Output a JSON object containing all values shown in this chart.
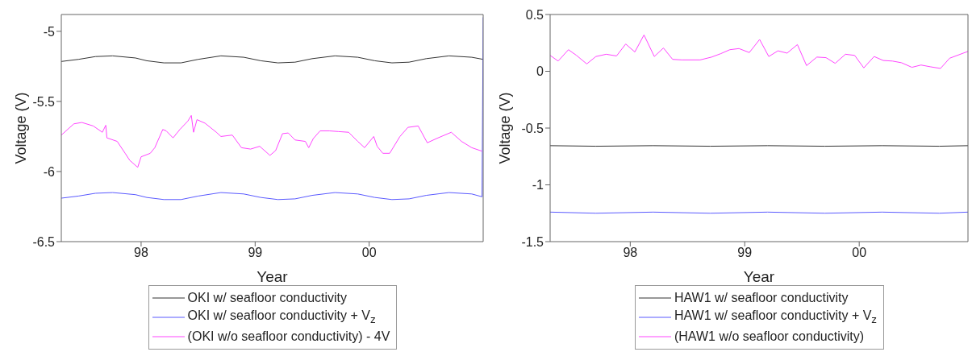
{
  "chart_data": [
    {
      "type": "line",
      "xlabel": "Year",
      "ylabel": "Voltage (V)",
      "xlim": [
        1997.3,
        2001.0
      ],
      "ylim": [
        -6.5,
        -4.88
      ],
      "xticks": [
        {
          "value": 1998,
          "label": "98"
        },
        {
          "value": 1999,
          "label": "99"
        },
        {
          "value": 2000,
          "label": "00"
        }
      ],
      "yticks": [
        -6.5,
        -6,
        -5.5,
        -5
      ],
      "legend": "bottom",
      "marker": "none",
      "series": [
        {
          "name": "OKI  w/ seafloor conductivity",
          "color": "#333333",
          "x": [
            1997.3,
            1997.45,
            1997.6,
            1997.75,
            1997.95,
            1998.05,
            1998.2,
            1998.35,
            1998.5,
            1998.7,
            1998.9,
            1999.05,
            1999.2,
            1999.35,
            1999.5,
            1999.7,
            1999.9,
            2000.05,
            2000.2,
            2000.35,
            2000.5,
            2000.7,
            2000.9,
            2001.0
          ],
          "values": [
            -5.215,
            -5.2,
            -5.18,
            -5.175,
            -5.19,
            -5.21,
            -5.225,
            -5.225,
            -5.2,
            -5.175,
            -5.185,
            -5.21,
            -5.225,
            -5.22,
            -5.195,
            -5.175,
            -5.185,
            -5.21,
            -5.225,
            -5.22,
            -5.195,
            -5.175,
            -5.185,
            -5.2
          ]
        },
        {
          "name": "OKI  w/ seafloor conductivity + V$_{z}$",
          "color": "#5a5aff",
          "x": [
            1997.3,
            1997.45,
            1997.6,
            1997.75,
            1997.95,
            1998.05,
            1998.2,
            1998.35,
            1998.5,
            1998.7,
            1998.9,
            1999.05,
            1999.2,
            1999.35,
            1999.5,
            1999.7,
            1999.9,
            2000.05,
            2000.2,
            2000.35,
            2000.5,
            2000.7,
            2000.9,
            2000.99,
            2001.0
          ],
          "values": [
            -6.19,
            -6.175,
            -6.155,
            -6.15,
            -6.165,
            -6.185,
            -6.2,
            -6.2,
            -6.175,
            -6.15,
            -6.16,
            -6.185,
            -6.2,
            -6.195,
            -6.17,
            -6.15,
            -6.16,
            -6.185,
            -6.2,
            -6.195,
            -6.17,
            -6.15,
            -6.16,
            -6.18,
            -4.9
          ]
        },
        {
          "name": "(OKI w/o seafloor conductivity) - 4V",
          "color": "#ff44ff",
          "x": [
            1997.3,
            1997.41,
            1997.48,
            1997.58,
            1997.66,
            1997.69,
            1997.7,
            1997.79,
            1997.86,
            1997.9,
            1997.97,
            1998.0,
            1998.08,
            1998.12,
            1998.19,
            1998.22,
            1998.28,
            1998.34,
            1998.41,
            1998.44,
            1998.46,
            1998.49,
            1998.56,
            1998.66,
            1998.7,
            1998.8,
            1998.88,
            1998.96,
            1999.04,
            1999.13,
            1999.18,
            1999.24,
            1999.29,
            1999.35,
            1999.44,
            1999.47,
            1999.51,
            1999.57,
            1999.65,
            1999.73,
            1999.82,
            1999.9,
            1999.96,
            2000.04,
            2000.07,
            2000.12,
            2000.18,
            2000.27,
            2000.34,
            2000.43,
            2000.46,
            2000.51,
            2000.59,
            2000.72,
            2000.81,
            2000.9,
            2000.99
          ],
          "values": [
            -5.74,
            -5.66,
            -5.65,
            -5.675,
            -5.72,
            -5.67,
            -5.76,
            -5.785,
            -5.87,
            -5.92,
            -5.97,
            -5.895,
            -5.87,
            -5.83,
            -5.7,
            -5.71,
            -5.76,
            -5.7,
            -5.64,
            -5.6,
            -5.72,
            -5.63,
            -5.655,
            -5.72,
            -5.75,
            -5.74,
            -5.83,
            -5.84,
            -5.82,
            -5.885,
            -5.85,
            -5.73,
            -5.725,
            -5.775,
            -5.785,
            -5.83,
            -5.765,
            -5.71,
            -5.71,
            -5.715,
            -5.72,
            -5.785,
            -5.83,
            -5.75,
            -5.82,
            -5.87,
            -5.87,
            -5.75,
            -5.685,
            -5.675,
            -5.72,
            -5.795,
            -5.765,
            -5.72,
            -5.785,
            -5.83,
            -5.855
          ]
        }
      ]
    },
    {
      "type": "line",
      "xlabel": "Year",
      "ylabel": "Voltage (V)",
      "xlim": [
        1997.3,
        2000.95
      ],
      "ylim": [
        -1.5,
        0.5
      ],
      "xticks": [
        {
          "value": 1998,
          "label": "98"
        },
        {
          "value": 1999,
          "label": "99"
        },
        {
          "value": 2000,
          "label": "00"
        }
      ],
      "yticks": [
        -1.5,
        -1,
        -0.5,
        0,
        0.5
      ],
      "legend": "bottom",
      "marker": "none",
      "series": [
        {
          "name": "HAW1  w/ seafloor conductivity",
          "color": "#333333",
          "x": [
            1997.3,
            1997.7,
            1998.2,
            1998.7,
            1999.2,
            1999.7,
            2000.2,
            2000.7,
            2000.95
          ],
          "values": [
            -0.655,
            -0.66,
            -0.655,
            -0.66,
            -0.655,
            -0.66,
            -0.655,
            -0.66,
            -0.655
          ]
        },
        {
          "name": "HAW1  w/ seafloor conductivity + V$_{z}$",
          "color": "#5a5aff",
          "x": [
            1997.3,
            1997.7,
            1998.2,
            1998.7,
            1999.2,
            1999.7,
            2000.2,
            2000.7,
            2000.95
          ],
          "values": [
            -1.24,
            -1.25,
            -1.24,
            -1.25,
            -1.24,
            -1.25,
            -1.24,
            -1.25,
            -1.24
          ]
        },
        {
          "name": "(HAW1 w/o seafloor conductivity)",
          "color": "#ff44ff",
          "x": [
            1997.3,
            1997.37,
            1997.46,
            1997.53,
            1997.62,
            1997.7,
            1997.79,
            1997.88,
            1997.96,
            1998.04,
            1998.12,
            1998.21,
            1998.29,
            1998.37,
            1998.45,
            1998.61,
            1998.71,
            1998.79,
            1998.87,
            1998.95,
            1999.04,
            1999.13,
            1999.21,
            1999.29,
            1999.37,
            1999.46,
            1999.54,
            1999.63,
            1999.71,
            1999.79,
            1999.88,
            1999.96,
            2000.04,
            2000.13,
            2000.21,
            2000.29,
            2000.37,
            2000.46,
            2000.54,
            2000.62,
            2000.71,
            2000.79,
            2000.95
          ],
          "values": [
            0.14,
            0.09,
            0.19,
            0.14,
            0.065,
            0.13,
            0.15,
            0.135,
            0.24,
            0.17,
            0.32,
            0.13,
            0.205,
            0.105,
            0.1,
            0.1,
            0.125,
            0.155,
            0.19,
            0.2,
            0.165,
            0.28,
            0.13,
            0.18,
            0.16,
            0.235,
            0.05,
            0.125,
            0.12,
            0.07,
            0.15,
            0.14,
            0.03,
            0.13,
            0.095,
            0.09,
            0.075,
            0.035,
            0.055,
            0.04,
            0.025,
            0.115,
            0.175
          ]
        }
      ]
    }
  ]
}
